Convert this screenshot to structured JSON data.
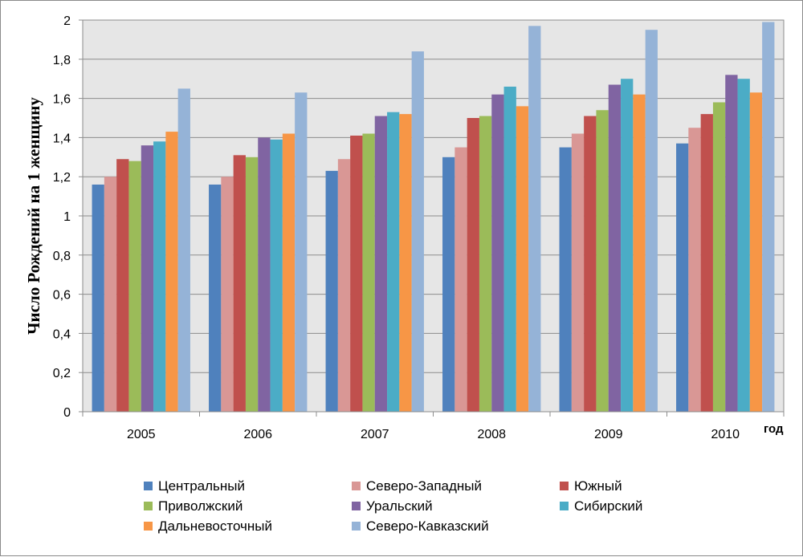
{
  "chart_data": {
    "type": "bar",
    "title": "",
    "xlabel": "год",
    "ylabel": "Число Рождений на 1 женщину",
    "ylim": [
      0,
      2
    ],
    "yticks": [
      "0",
      "0,2",
      "0,4",
      "0,6",
      "0,8",
      "1",
      "1,2",
      "1,4",
      "1,6",
      "1,8",
      "2"
    ],
    "categories": [
      "2005",
      "2006",
      "2007",
      "2008",
      "2009",
      "2010"
    ],
    "grid": "horizontal",
    "legend_position": "bottom",
    "series": [
      {
        "name": "Центральный",
        "color": "#4F81BD",
        "values": [
          1.16,
          1.16,
          1.23,
          1.3,
          1.35,
          1.37
        ]
      },
      {
        "name": "Северо-Западный",
        "color": "#D99795",
        "values": [
          1.2,
          1.2,
          1.29,
          1.35,
          1.42,
          1.45
        ]
      },
      {
        "name": "Южный",
        "color": "#C0504D",
        "values": [
          1.29,
          1.31,
          1.41,
          1.5,
          1.51,
          1.52
        ]
      },
      {
        "name": "Приволжский",
        "color": "#9BBB59",
        "values": [
          1.28,
          1.3,
          1.42,
          1.51,
          1.54,
          1.58
        ]
      },
      {
        "name": "Уральский",
        "color": "#8064A2",
        "values": [
          1.36,
          1.4,
          1.51,
          1.62,
          1.67,
          1.72
        ]
      },
      {
        "name": "Сибирский",
        "color": "#4BACC6",
        "values": [
          1.38,
          1.39,
          1.53,
          1.66,
          1.7,
          1.7
        ]
      },
      {
        "name": "Дальневосточный",
        "color": "#F79646",
        "values": [
          1.43,
          1.42,
          1.52,
          1.56,
          1.62,
          1.63
        ]
      },
      {
        "name": "Северо-Кавказский",
        "color": "#95B3D7",
        "values": [
          1.65,
          1.63,
          1.84,
          1.97,
          1.95,
          1.99
        ]
      }
    ]
  }
}
